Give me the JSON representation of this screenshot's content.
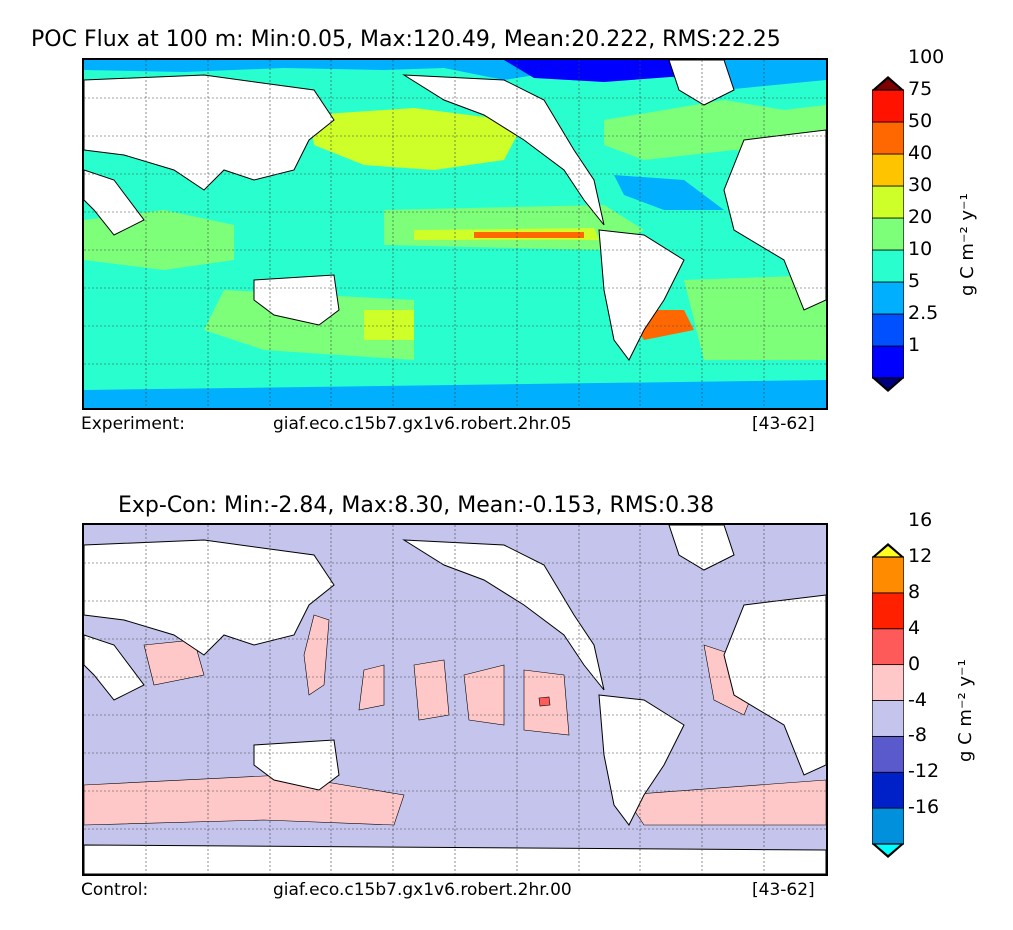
{
  "chart_data": [
    {
      "type": "heatmap",
      "title": "POC Flux at 100 m: Min:0.05, Max:120.49, Mean:20.222, RMS:22.25",
      "stats": {
        "min": 0.05,
        "max": 120.49,
        "mean": 20.222,
        "rms": 22.25
      },
      "colorbar": {
        "levels": [
          "1",
          "2.5",
          "5",
          "10",
          "20",
          "30",
          "40",
          "50",
          "75",
          "100"
        ],
        "colors": [
          "#00007f",
          "#0000ff",
          "#0050ff",
          "#00b0ff",
          "#29ffce",
          "#7dff7a",
          "#ceff29",
          "#ffc400",
          "#ff6800",
          "#ff1300",
          "#7f0000"
        ],
        "unit": "g C m⁻² y⁻¹",
        "extend": "both"
      },
      "footer": {
        "label": "Experiment:",
        "run": "giaf.eco.c15b7.gx1v6.robert.2hr.05",
        "years": "[43-62]"
      }
    },
    {
      "type": "heatmap",
      "title": "Exp-Con: Min:-2.84, Max:8.30, Mean:-0.153, RMS:0.38",
      "stats": {
        "min": -2.84,
        "max": 8.3,
        "mean": -0.153,
        "rms": 0.38
      },
      "colorbar": {
        "levels": [
          "-16",
          "-12",
          "-8",
          "-4",
          "0",
          "4",
          "8",
          "12",
          "16"
        ],
        "colors": [
          "#00ffff",
          "#0090dc",
          "#0020c8",
          "#5a5acd",
          "#c4c4ed",
          "#ffc8c8",
          "#ff5a5a",
          "#ff2000",
          "#ff8c00",
          "#ffff20"
        ],
        "unit": "g C m⁻² y⁻¹",
        "extend": "both"
      },
      "footer": {
        "label": "Control:",
        "run": "giaf.eco.c15b7.gx1v6.robert.2hr.00",
        "years": "[43-62]"
      }
    }
  ],
  "colors": {
    "land": "#ffffff",
    "coast": "#000000",
    "top_ocean_base": "#29ffce",
    "bottom_ocean_base": "#c4c4ed"
  }
}
